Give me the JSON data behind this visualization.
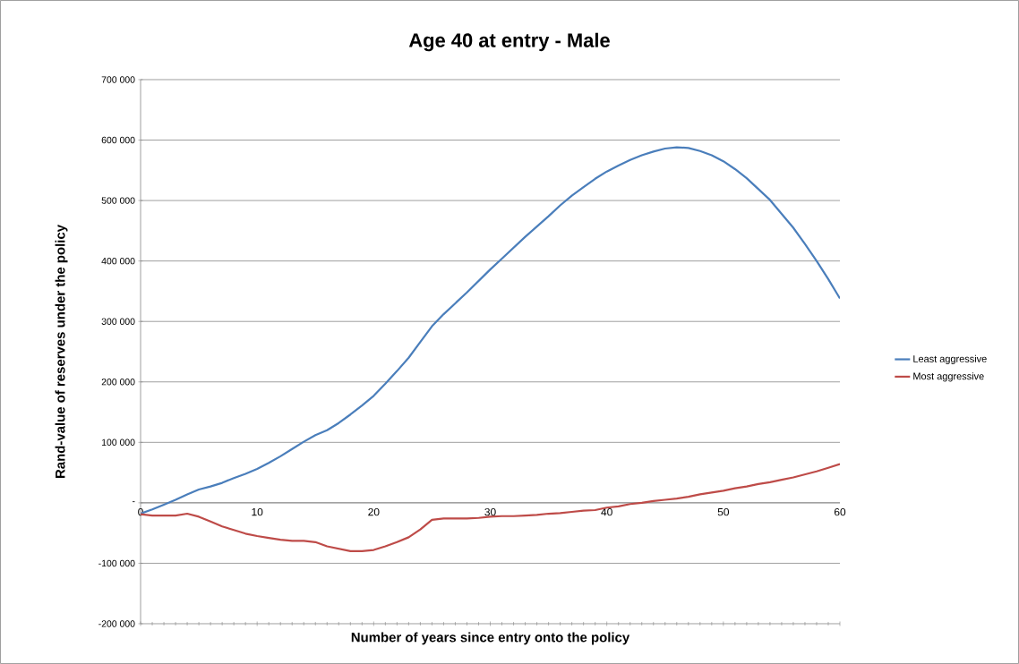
{
  "chart_data": {
    "type": "line",
    "title": "Age 40 at entry - Male",
    "xlabel": "Number of years since entry onto the policy",
    "ylabel": "Rand-value  of reserves under the policy",
    "x": [
      0,
      1,
      2,
      3,
      4,
      5,
      6,
      7,
      8,
      9,
      10,
      11,
      12,
      13,
      14,
      15,
      16,
      17,
      18,
      19,
      20,
      21,
      22,
      23,
      24,
      25,
      26,
      27,
      28,
      29,
      30,
      31,
      32,
      33,
      34,
      35,
      36,
      37,
      38,
      39,
      40,
      41,
      42,
      43,
      44,
      45,
      46,
      47,
      48,
      49,
      50,
      51,
      52,
      53,
      54,
      55,
      56,
      57,
      58,
      59,
      60
    ],
    "series": [
      {
        "name": "Least aggressive",
        "color": "#4a7ebb",
        "values": [
          -18000,
          -11000,
          -3000,
          5000,
          14000,
          22000,
          27000,
          33000,
          41000,
          48000,
          56000,
          66000,
          77000,
          89000,
          101000,
          112000,
          120000,
          132000,
          146000,
          161000,
          177000,
          197000,
          218000,
          240000,
          266000,
          292000,
          312000,
          330000,
          348000,
          367000,
          386000,
          404000,
          422000,
          440000,
          457000,
          474000,
          492000,
          508000,
          522000,
          536000,
          548000,
          558000,
          567000,
          575000,
          581000,
          586000,
          588000,
          587000,
          582000,
          575000,
          565000,
          552000,
          537000,
          519000,
          501000,
          478000,
          455000,
          428000,
          400000,
          370000,
          338000
        ]
      },
      {
        "name": "Most aggressive",
        "color": "#be4b48",
        "values": [
          -19000,
          -21000,
          -21000,
          -21000,
          -18000,
          -23000,
          -31000,
          -39000,
          -45000,
          -51000,
          -55000,
          -58000,
          -61000,
          -63000,
          -63000,
          -65000,
          -72000,
          -76000,
          -80000,
          -80000,
          -78000,
          -72000,
          -65000,
          -57000,
          -44000,
          -28000,
          -26000,
          -26000,
          -26000,
          -25000,
          -23000,
          -22000,
          -22000,
          -21000,
          -20000,
          -18000,
          -17000,
          -15000,
          -13000,
          -12000,
          -8000,
          -6000,
          -2000,
          0,
          3000,
          5000,
          7000,
          10000,
          14000,
          17000,
          20000,
          24000,
          27000,
          31000,
          34000,
          38000,
          42000,
          47000,
          52000,
          58000,
          64000
        ]
      }
    ],
    "xlim": [
      0,
      60
    ],
    "xticks": [
      0,
      10,
      20,
      30,
      40,
      50,
      60
    ],
    "ylim": [
      -200000,
      700000
    ],
    "yticks": [
      {
        "value": -200000,
        "label": "-200 000"
      },
      {
        "value": -100000,
        "label": "-100 000"
      },
      {
        "value": 0,
        "label": "-"
      },
      {
        "value": 100000,
        "label": "100 000"
      },
      {
        "value": 200000,
        "label": "200 000"
      },
      {
        "value": 300000,
        "label": "300 000"
      },
      {
        "value": 400000,
        "label": "400 000"
      },
      {
        "value": 500000,
        "label": "500 000"
      },
      {
        "value": 600000,
        "label": "600 000"
      },
      {
        "value": 700000,
        "label": "700 000"
      }
    ],
    "grid": "y",
    "legend": "right",
    "marker": "none",
    "line_style": "solid"
  }
}
